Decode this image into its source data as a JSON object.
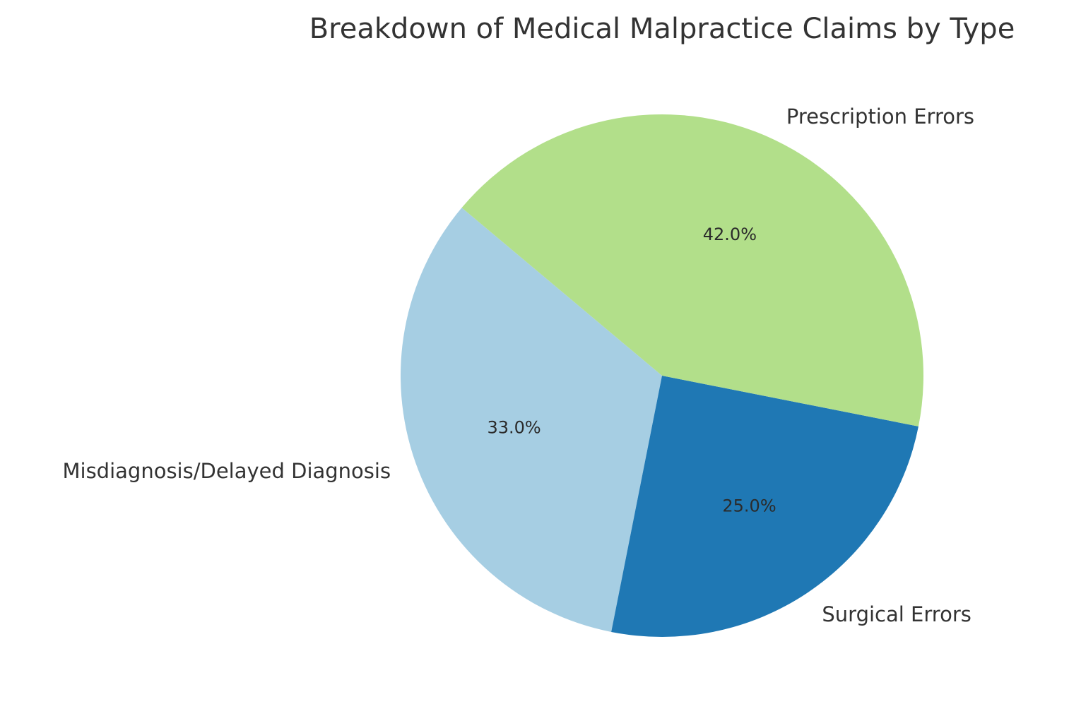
{
  "chart_data": {
    "type": "pie",
    "title": "Breakdown of Medical Malpractice Claims by Type",
    "categories": [
      "Misdiagnosis/Delayed Diagnosis",
      "Surgical Errors",
      "Prescription Errors"
    ],
    "values": [
      33,
      25,
      42
    ],
    "value_labels": [
      "33.0%",
      "25.0%",
      "42.0%"
    ],
    "colors": [
      "#a6cee3",
      "#1f78b4",
      "#b2df8a"
    ],
    "start_angle_deg": 140,
    "direction": "counterclockwise",
    "legend": "none"
  }
}
